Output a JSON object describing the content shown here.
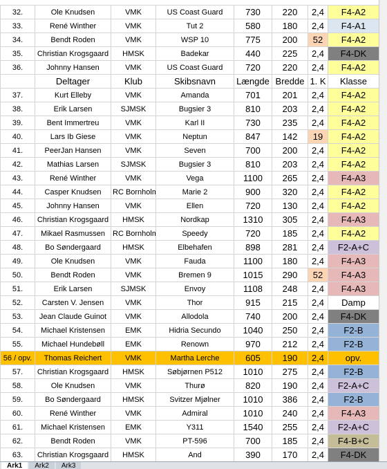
{
  "sheet": {
    "rows": [
      {
        "cells": [
          "32.",
          "Ole Knudsen",
          "VMK",
          "US Coast Guard",
          "730",
          "220",
          "2,4",
          "F4-A2"
        ],
        "klasse_color": "#fefe9a"
      },
      {
        "cells": [
          "33.",
          "René Winther",
          "VMK",
          "Tut 2",
          "580",
          "180",
          "2,4",
          "F4-A1"
        ],
        "klasse_color": "#dce6f1"
      },
      {
        "cells": [
          "34.",
          "Bendt Roden",
          "VMK",
          "WSP 10",
          "775",
          "200",
          "52",
          "F4-A2"
        ],
        "klasse_color": "#fefe9a",
        "k_color": "#fcd5b4"
      },
      {
        "cells": [
          "35.",
          "Christian Krogsgaard",
          "HMSK",
          "Badekar",
          "440",
          "225",
          "2,4",
          "F4-DK"
        ],
        "klasse_color": "#808080"
      },
      {
        "cells": [
          "36.",
          "Johnny Hansen",
          "VMK",
          "US Coast Guard",
          "720",
          "220",
          "2,4",
          "F4-A2"
        ],
        "klasse_color": "#fefe9a"
      },
      {
        "cells": [
          "",
          "Deltager",
          "Klub",
          "Skibsnavn",
          "Længde",
          "Bredde",
          "1. K",
          "Klasse"
        ],
        "header": true
      },
      {
        "cells": [
          "37.",
          "Kurt Elleby",
          "VMK",
          "Amanda",
          "701",
          "201",
          "2,4",
          "F4-A2"
        ],
        "klasse_color": "#fefe9a"
      },
      {
        "cells": [
          "38.",
          "Erik Larsen",
          "SJMSK",
          "Bugsier 3",
          "810",
          "203",
          "2,4",
          "F4-A2"
        ],
        "klasse_color": "#fefe9a"
      },
      {
        "cells": [
          "39.",
          "Bent Immertreu",
          "VMK",
          "Karl II",
          "730",
          "235",
          "2,4",
          "F4-A2"
        ],
        "klasse_color": "#fefe9a"
      },
      {
        "cells": [
          "40.",
          "Lars Ib Giese",
          "VMK",
          "Neptun",
          "847",
          "142",
          "19",
          "F4-A2"
        ],
        "klasse_color": "#fefe9a",
        "k_color": "#fcd5b4"
      },
      {
        "cells": [
          "41.",
          "PeerJan Hansen",
          "VMK",
          "Seven",
          "700",
          "200",
          "2,4",
          "F4-A2"
        ],
        "klasse_color": "#fefe9a"
      },
      {
        "cells": [
          "42.",
          "Mathias Larsen",
          "SJMSK",
          "Bugsier 3",
          "810",
          "203",
          "2,4",
          "F4-A2"
        ],
        "klasse_color": "#fefe9a"
      },
      {
        "cells": [
          "43.",
          "René Winther",
          "VMK",
          "Vega",
          "1100",
          "265",
          "2,4",
          "F4-A3"
        ],
        "klasse_color": "#e6b8b7"
      },
      {
        "cells": [
          "44.",
          "Casper Knudsen",
          "RC Bornholm",
          "Marie 2",
          "900",
          "320",
          "2,4",
          "F4-A2"
        ],
        "klasse_color": "#fefe9a"
      },
      {
        "cells": [
          "45.",
          "Johnny Hansen",
          "VMK",
          "Ellen",
          "720",
          "130",
          "2,4",
          "F4-A2"
        ],
        "klasse_color": "#fefe9a"
      },
      {
        "cells": [
          "46.",
          "Christian Krogsgaard",
          "HMSK",
          "Nordkap",
          "1310",
          "305",
          "2,4",
          "F4-A3"
        ],
        "klasse_color": "#e6b8b7"
      },
      {
        "cells": [
          "47.",
          "Mikael Rasmussen",
          "RC Bornholm",
          "Speedy",
          "720",
          "185",
          "2,4",
          "F4-A2"
        ],
        "klasse_color": "#fefe9a"
      },
      {
        "cells": [
          "48.",
          "Bo Søndergaard",
          "HMSK",
          "Elbehafen",
          "898",
          "281",
          "2,4",
          "F2-A+C"
        ],
        "klasse_color": "#ccc0da"
      },
      {
        "cells": [
          "49.",
          "Ole Knudsen",
          "VMK",
          "Fauda",
          "1100",
          "180",
          "2,4",
          "F4-A3"
        ],
        "klasse_color": "#e6b8b7"
      },
      {
        "cells": [
          "50.",
          "Bendt Roden",
          "VMK",
          "Bremen 9",
          "1015",
          "290",
          "52",
          "F4-A3"
        ],
        "klasse_color": "#e6b8b7",
        "k_color": "#fcd5b4"
      },
      {
        "cells": [
          "51.",
          "Erik Larsen",
          "SJMSK",
          "Envoy",
          "1108",
          "248",
          "2,4",
          "F4-A3"
        ],
        "klasse_color": "#e6b8b7"
      },
      {
        "cells": [
          "52.",
          "Carsten V. Jensen",
          "VMK",
          "Thor",
          "915",
          "215",
          "2,4",
          "Damp"
        ],
        "klasse_color": "#ffffff"
      },
      {
        "cells": [
          "53.",
          "Jean Claude Guinot",
          "VMK",
          "Allodola",
          "740",
          "200",
          "2,4",
          "F4-DK"
        ],
        "klasse_color": "#808080"
      },
      {
        "cells": [
          "54.",
          "Michael Kristensen",
          "EMK",
          "Hidria Secundo",
          "1040",
          "250",
          "2,4",
          "F2-B"
        ],
        "klasse_color": "#95b3d7"
      },
      {
        "cells": [
          "55.",
          "Michael Hundebøll",
          "EMK",
          "Renown",
          "970",
          "212",
          "2,4",
          "F2-B"
        ],
        "klasse_color": "#95b3d7"
      },
      {
        "cells": [
          "56 / opv.",
          "Thomas Reichert",
          "VMK",
          "Martha Lerche",
          "605",
          "190",
          "2,4",
          "opv."
        ],
        "row_color": "#ffc000"
      },
      {
        "cells": [
          "57.",
          "Christian Krogsgaard",
          "HMSK",
          "Søbjørnen P512",
          "1010",
          "275",
          "2,4",
          "F2-B"
        ],
        "klasse_color": "#95b3d7"
      },
      {
        "cells": [
          "58.",
          "Ole Knudsen",
          "VMK",
          "Thurø",
          "820",
          "190",
          "2,4",
          "F2-A+C"
        ],
        "klasse_color": "#ccc0da"
      },
      {
        "cells": [
          "59.",
          "Bo Søndergaard",
          "HMSK",
          "Svitzer Mjølner",
          "1010",
          "386",
          "2,4",
          "F2-B"
        ],
        "klasse_color": "#95b3d7"
      },
      {
        "cells": [
          "60.",
          "René Winther",
          "VMK",
          "Admiral",
          "1010",
          "240",
          "2,4",
          "F4-A3"
        ],
        "klasse_color": "#e6b8b7"
      },
      {
        "cells": [
          "61.",
          "Michael Kristensen",
          "EMK",
          "Y311",
          "1540",
          "255",
          "2,4",
          "F2-A+C"
        ],
        "klasse_color": "#ccc0da"
      },
      {
        "cells": [
          "62.",
          "Bendt Roden",
          "VMK",
          "PT-596",
          "700",
          "185",
          "2,4",
          "F4-B+C"
        ],
        "klasse_color": "#c4bd97"
      },
      {
        "cells": [
          "63.",
          "Christian Krogsgaard",
          "HMSK",
          "And",
          "390",
          "170",
          "2,4",
          "F4-DK"
        ],
        "klasse_color": "#808080"
      }
    ],
    "tabs": [
      "Ark1",
      "Ark2",
      "Ark3"
    ]
  }
}
